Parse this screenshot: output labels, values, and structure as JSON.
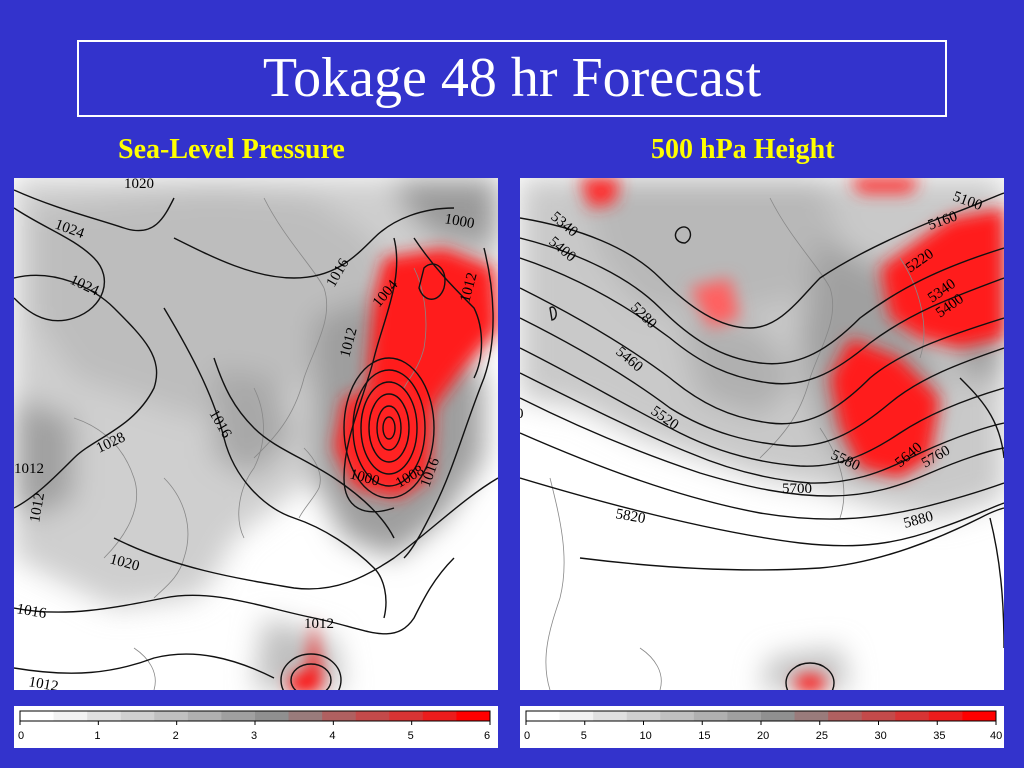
{
  "title": "Tokage 48 hr Forecast",
  "panels": {
    "left": {
      "title": "Sea-Level Pressure",
      "contour_labels": [
        "1020",
        "1024",
        "1024",
        "1028",
        "1016",
        "1016",
        "1012",
        "1004",
        "1012",
        "1000",
        "1000",
        "1008",
        "1016",
        "1012",
        "1020",
        "1016",
        "1012",
        "1012",
        "1012"
      ],
      "colorbar": {
        "ticks": [
          "0",
          "1",
          "2",
          "3",
          "4",
          "5",
          "6"
        ]
      }
    },
    "right": {
      "title": "500 hPa Height",
      "contour_labels": [
        "5340",
        "5400",
        "5280",
        "5460",
        "5520",
        "5580",
        "5640",
        "5700",
        "5760",
        "5820",
        "5880",
        "5100",
        "5160",
        "5220",
        "5340",
        "5400",
        "0"
      ],
      "colorbar": {
        "ticks": [
          "0",
          "5",
          "10",
          "15",
          "20",
          "25",
          "30",
          "35",
          "40"
        ]
      }
    }
  },
  "colors": {
    "background": "#3333cc",
    "title_text": "#ffffff",
    "subtitle_text": "#ffff00",
    "shading_max": "#ff0000"
  }
}
